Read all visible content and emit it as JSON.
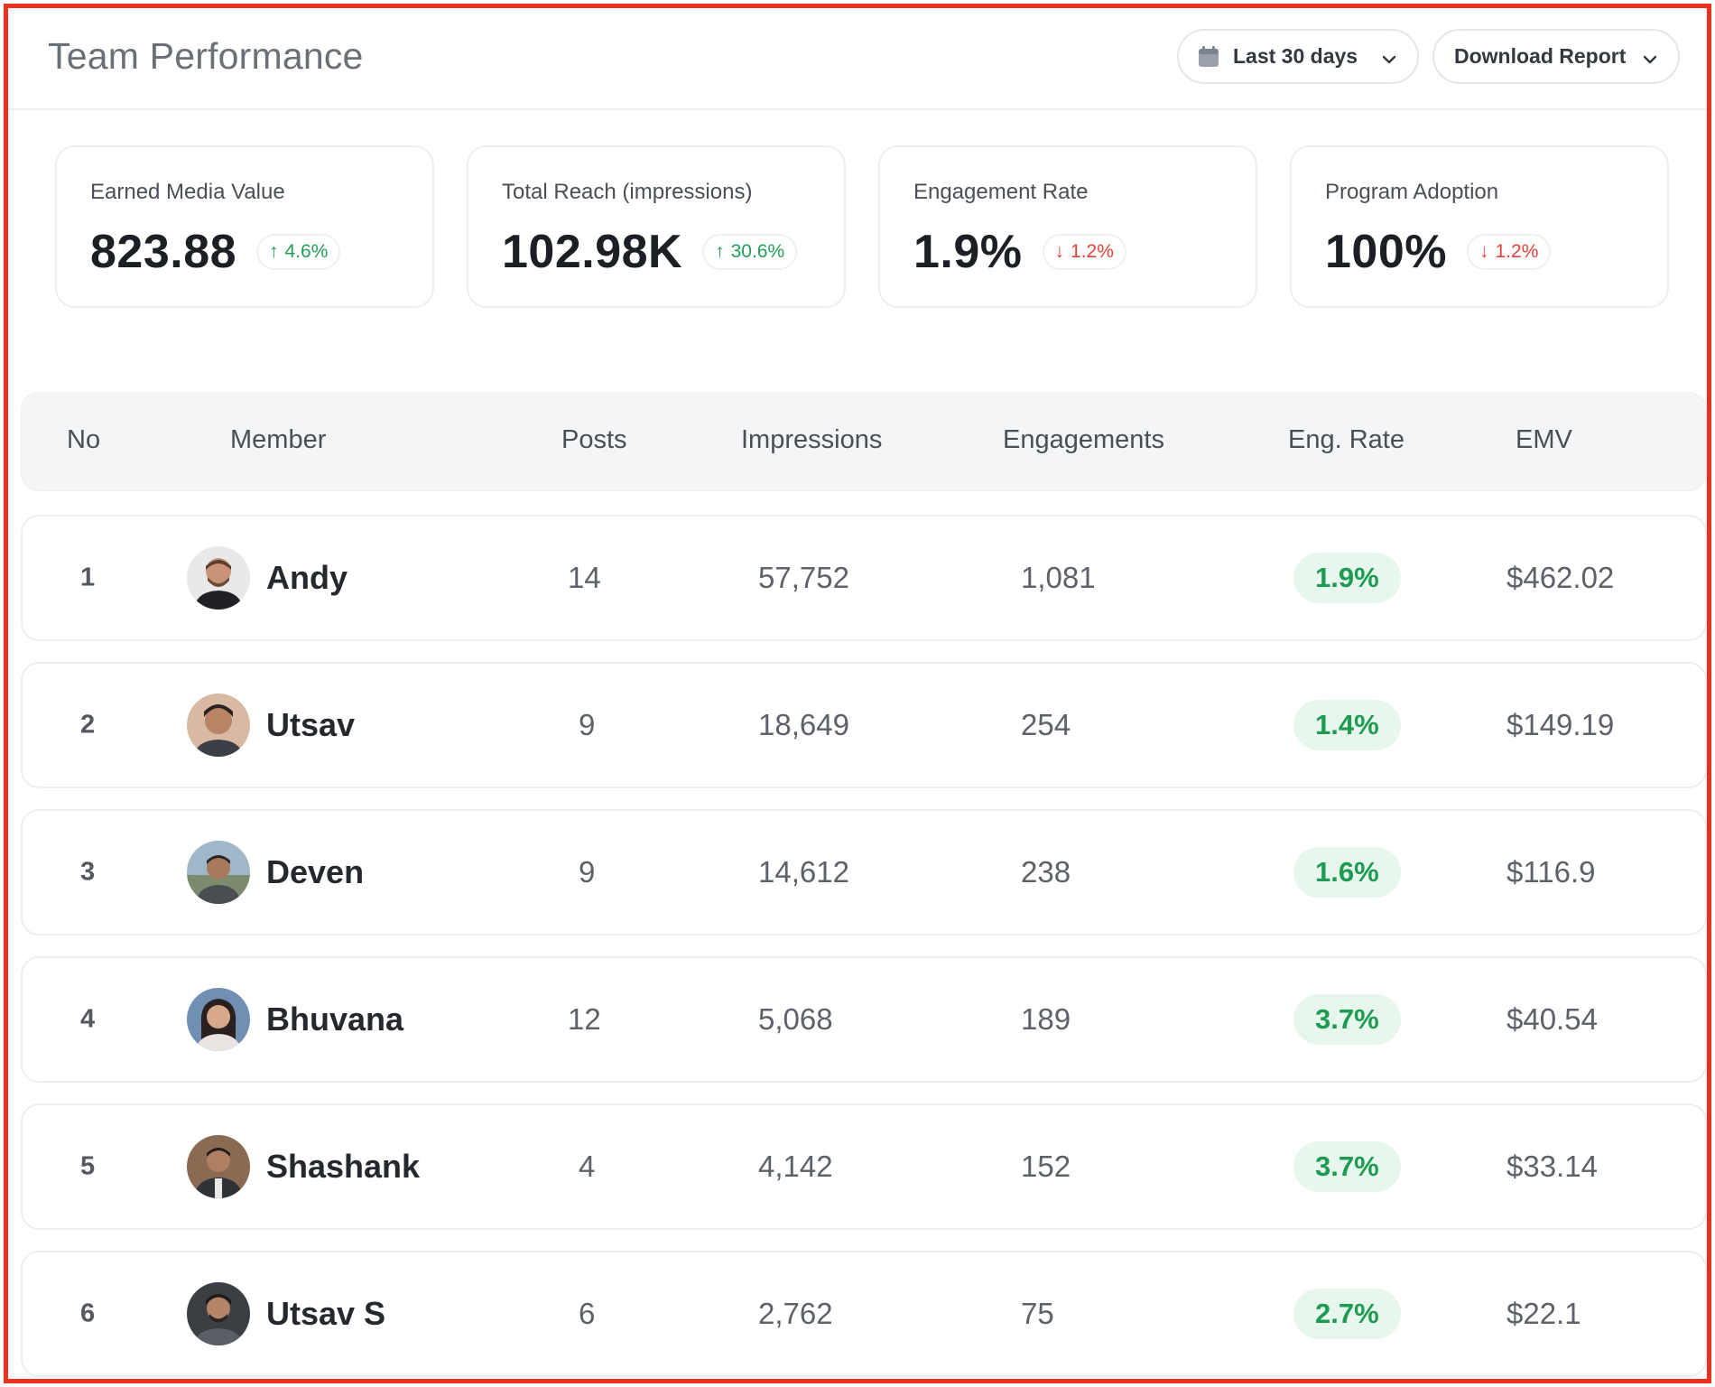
{
  "header": {
    "title": "Team Performance",
    "range_label": "Last 30 days",
    "download_label": "Download Report"
  },
  "kpis": [
    {
      "label": "Earned Media Value",
      "value": "823.88",
      "delta": "4.6%",
      "direction": "up"
    },
    {
      "label": "Total Reach (impressions)",
      "value": "102.98K",
      "delta": "30.6%",
      "direction": "up"
    },
    {
      "label": "Engagement Rate",
      "value": "1.9%",
      "delta": "1.2%",
      "direction": "down"
    },
    {
      "label": "Program Adoption",
      "value": "100%",
      "delta": "1.2%",
      "direction": "down"
    }
  ],
  "table": {
    "columns": [
      "No",
      "Member",
      "Posts",
      "Impressions",
      "Engagements",
      "Eng. Rate",
      "EMV"
    ],
    "rows": [
      {
        "no": "1",
        "member": "Andy",
        "posts": "14",
        "impressions": "57,752",
        "engagements": "1,081",
        "eng_rate": "1.9%",
        "emv": "$462.02"
      },
      {
        "no": "2",
        "member": "Utsav",
        "posts": "9",
        "impressions": "18,649",
        "engagements": "254",
        "eng_rate": "1.4%",
        "emv": "$149.19"
      },
      {
        "no": "3",
        "member": "Deven",
        "posts": "9",
        "impressions": "14,612",
        "engagements": "238",
        "eng_rate": "1.6%",
        "emv": "$116.9"
      },
      {
        "no": "4",
        "member": "Bhuvana",
        "posts": "12",
        "impressions": "5,068",
        "engagements": "189",
        "eng_rate": "3.7%",
        "emv": "$40.54"
      },
      {
        "no": "5",
        "member": "Shashank",
        "posts": "4",
        "impressions": "4,142",
        "engagements": "152",
        "eng_rate": "3.7%",
        "emv": "$33.14"
      },
      {
        "no": "6",
        "member": "Utsav S",
        "posts": "6",
        "impressions": "2,762",
        "engagements": "75",
        "eng_rate": "2.7%",
        "emv": "$22.1"
      }
    ]
  },
  "colors": {
    "frame": "#e8321f",
    "positive": "#22a05a",
    "negative": "#e5413a",
    "pill_bg": "#e8f7ee"
  },
  "icons": [
    "calendar-icon",
    "chevron-down-icon",
    "arrow-up-icon",
    "arrow-down-icon",
    "avatar"
  ]
}
